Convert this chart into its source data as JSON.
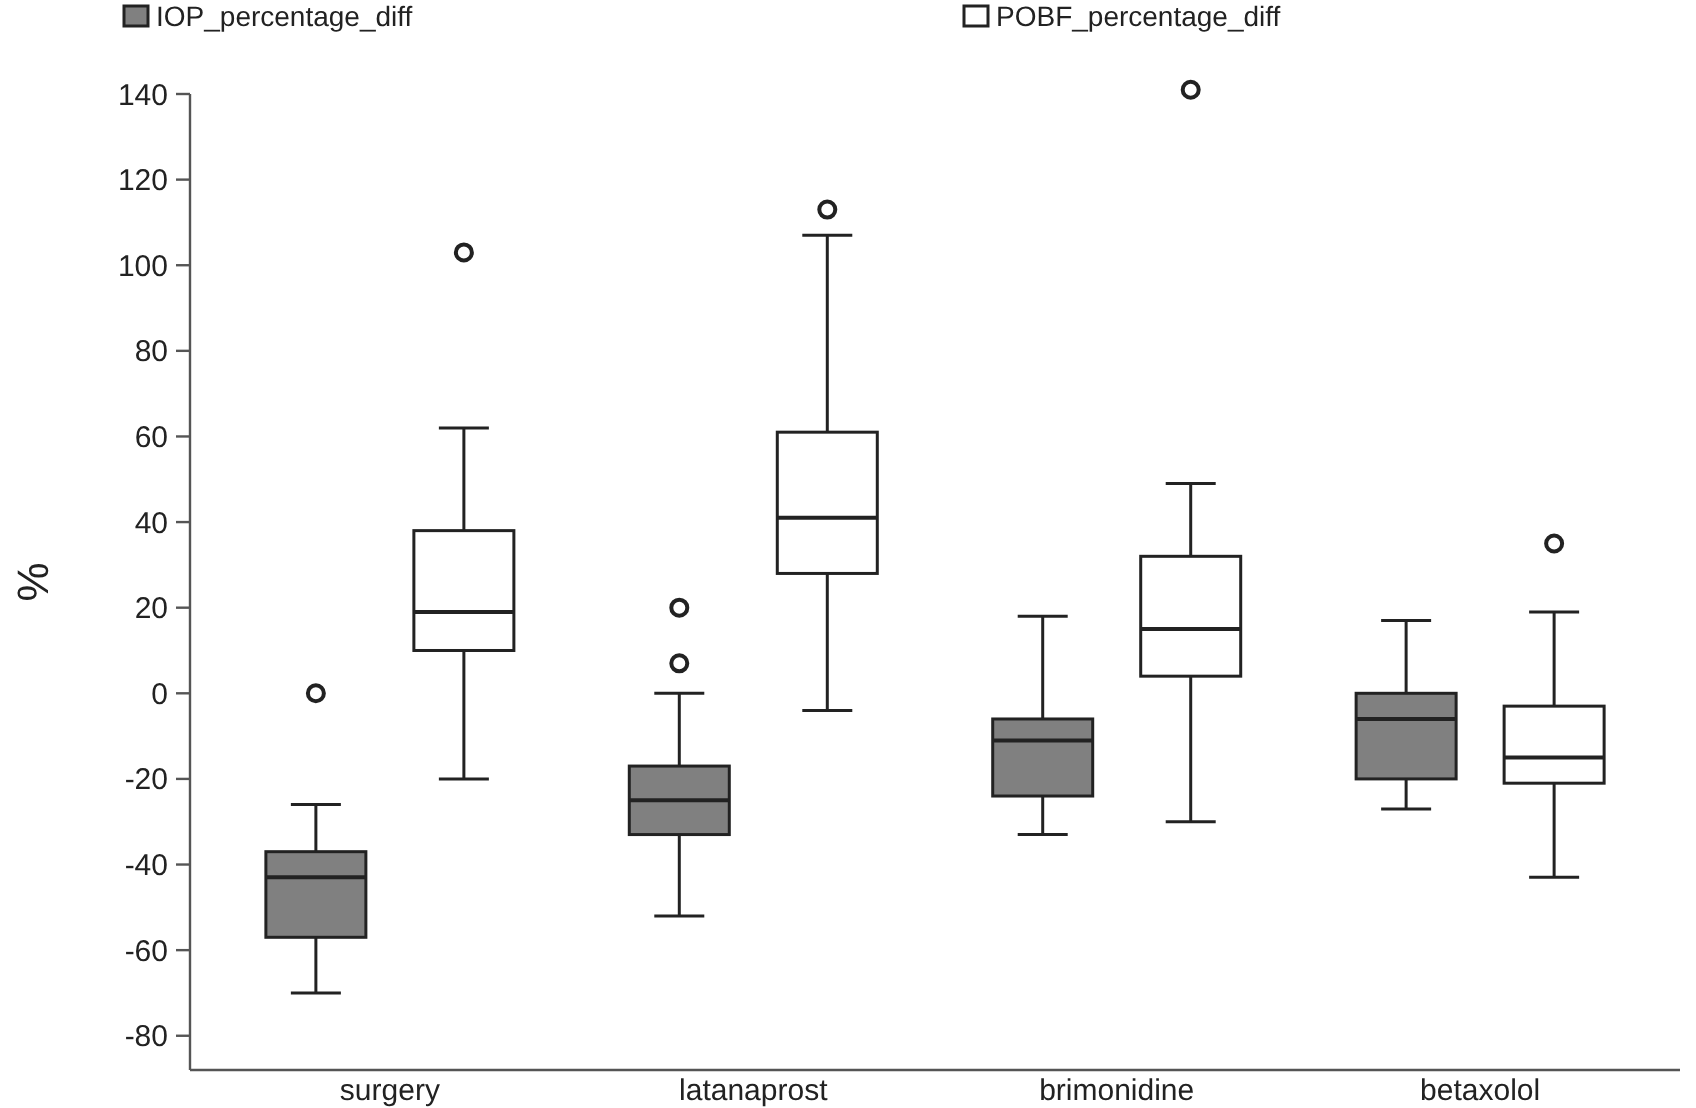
{
  "chart_data": {
    "type": "box",
    "ylabel": "%",
    "categories": [
      "surgery",
      "latanaprost",
      "brimonidine",
      "betaxolol"
    ],
    "ylim": [
      -88,
      140
    ],
    "yticks": [
      -80,
      -60,
      -40,
      -20,
      0,
      20,
      40,
      60,
      80,
      100,
      120,
      140
    ],
    "grid": false,
    "legend": "top",
    "series": [
      {
        "name": "IOP_percentage_diff",
        "color": "#808080",
        "boxes": [
          {
            "low": -70,
            "q1": -57,
            "median": -43,
            "q3": -37,
            "high": -26,
            "outliers": [
              0
            ]
          },
          {
            "low": -52,
            "q1": -33,
            "median": -25,
            "q3": -17,
            "high": 0,
            "outliers": [
              7,
              20
            ]
          },
          {
            "low": -33,
            "q1": -24,
            "median": -11,
            "q3": -6,
            "high": 18
          },
          {
            "low": -27,
            "q1": -20,
            "median": -6,
            "q3": 0,
            "high": 17
          }
        ]
      },
      {
        "name": "POBF_percentage_diff",
        "color": "#ffffff",
        "boxes": [
          {
            "low": -20,
            "q1": 10,
            "median": 19,
            "q3": 38,
            "high": 62,
            "outliers": [
              103
            ]
          },
          {
            "low": -4,
            "q1": 28,
            "median": 41,
            "q3": 61,
            "high": 107,
            "outliers": [
              113
            ]
          },
          {
            "low": -30,
            "q1": 4,
            "median": 15,
            "q3": 32,
            "high": 49,
            "outliers": [
              141
            ]
          },
          {
            "low": -43,
            "q1": -21,
            "median": -15,
            "q3": -3,
            "high": 19,
            "outliers": [
              35
            ]
          }
        ]
      }
    ]
  }
}
